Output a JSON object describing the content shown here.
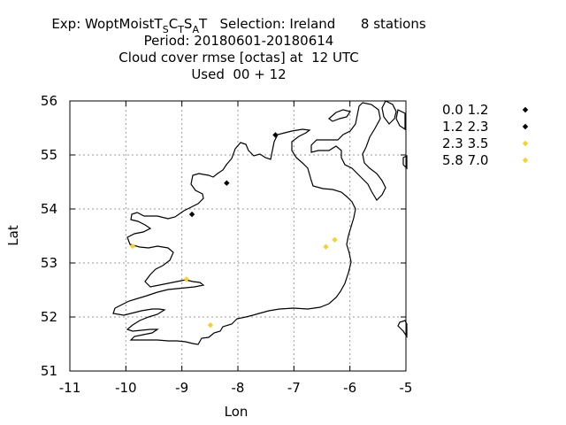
{
  "title": {
    "exp_prefix": "Exp: WoptMoist",
    "exp_parts": [
      [
        "T",
        "S"
      ],
      [
        "C",
        "T"
      ],
      [
        "S",
        "A"
      ],
      [
        "T",
        ""
      ]
    ],
    "selection": "Selection: Ireland",
    "stations": "8 stations",
    "period": "Period: 20180601-20180614",
    "variable": "Cloud cover rmse [octas] at  12 UTC",
    "used": "Used  00 + 12"
  },
  "chart_data": {
    "type": "scatter",
    "xlabel": "Lon",
    "ylabel": "Lat",
    "xlim": [
      -11,
      -5
    ],
    "ylim": [
      51,
      56
    ],
    "xticks": [
      "-11",
      "-10",
      "-9",
      "-8",
      "-7",
      "-6",
      "-5"
    ],
    "yticks": [
      "51",
      "52",
      "53",
      "54",
      "55",
      "56"
    ],
    "grid": true,
    "legend_position": "right",
    "series": [
      {
        "name": "0.0 1.2",
        "color": "#000000",
        "points": [
          [
            -7.33,
            55.37
          ],
          [
            -8.2,
            54.48
          ],
          [
            -8.82,
            53.9
          ]
        ]
      },
      {
        "name": "1.2 2.3",
        "color": "#000000",
        "points": []
      },
      {
        "name": "2.3 3.5",
        "color": "#f5d130",
        "points": [
          [
            -9.88,
            53.31
          ],
          [
            -8.92,
            52.7
          ],
          [
            -8.49,
            51.85
          ],
          [
            -6.43,
            53.3
          ],
          [
            -6.27,
            53.43
          ]
        ]
      },
      {
        "name": "5.8 7.0",
        "color": "#f5d130",
        "points": []
      }
    ]
  }
}
